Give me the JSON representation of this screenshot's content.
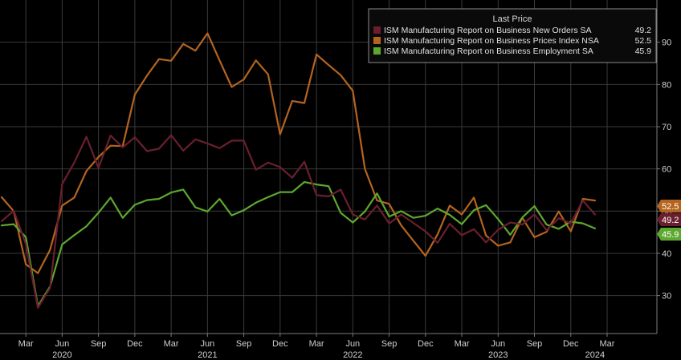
{
  "chart_data": {
    "type": "line",
    "title": "",
    "xlabel": "",
    "ylabel": "",
    "ylim": [
      21,
      100
    ],
    "x_start": "Jan 2020",
    "x_end": "Apr 2024",
    "yticks": [
      30,
      40,
      50,
      60,
      70,
      80,
      90
    ],
    "month_ticks": [
      {
        "label": "Mar",
        "date": "2020-03"
      },
      {
        "label": "Jun",
        "date": "2020-06"
      },
      {
        "label": "Sep",
        "date": "2020-09"
      },
      {
        "label": "Dec",
        "date": "2020-12"
      },
      {
        "label": "Mar",
        "date": "2021-03"
      },
      {
        "label": "Jun",
        "date": "2021-06"
      },
      {
        "label": "Sep",
        "date": "2021-09"
      },
      {
        "label": "Dec",
        "date": "2021-12"
      },
      {
        "label": "Mar",
        "date": "2022-03"
      },
      {
        "label": "Jun",
        "date": "2022-06"
      },
      {
        "label": "Sep",
        "date": "2022-09"
      },
      {
        "label": "Dec",
        "date": "2022-12"
      },
      {
        "label": "Mar",
        "date": "2023-03"
      },
      {
        "label": "Jun",
        "date": "2023-06"
      },
      {
        "label": "Sep",
        "date": "2023-09"
      },
      {
        "label": "Dec",
        "date": "2023-12"
      },
      {
        "label": "Mar",
        "date": "2024-03"
      }
    ],
    "year_labels": [
      {
        "label": "2020",
        "date": "2020-06"
      },
      {
        "label": "2021",
        "date": "2021-06"
      },
      {
        "label": "2022",
        "date": "2022-06"
      },
      {
        "label": "2023",
        "date": "2023-06"
      },
      {
        "label": "2024",
        "date": "2024-02"
      }
    ],
    "x": [
      "2020-01",
      "2020-02",
      "2020-03",
      "2020-04",
      "2020-05",
      "2020-06",
      "2020-07",
      "2020-08",
      "2020-09",
      "2020-10",
      "2020-11",
      "2020-12",
      "2021-01",
      "2021-02",
      "2021-03",
      "2021-04",
      "2021-05",
      "2021-06",
      "2021-07",
      "2021-08",
      "2021-09",
      "2021-10",
      "2021-11",
      "2021-12",
      "2022-01",
      "2022-02",
      "2022-03",
      "2022-04",
      "2022-05",
      "2022-06",
      "2022-07",
      "2022-08",
      "2022-09",
      "2022-10",
      "2022-11",
      "2022-12",
      "2023-01",
      "2023-02",
      "2023-03",
      "2023-04",
      "2023-05",
      "2023-06",
      "2023-07",
      "2023-08",
      "2023-09",
      "2023-10",
      "2023-11",
      "2023-12",
      "2024-01",
      "2024-02"
    ],
    "legend": {
      "title": "Last Price",
      "placement": "top-right"
    },
    "series": [
      {
        "name": "ISM Manufacturing Report on Business New Orders SA",
        "color": "#6b1f2e",
        "last": "49.2",
        "values": [
          47.6,
          50.1,
          42.2,
          27.1,
          31.8,
          56.4,
          61.5,
          67.6,
          60.2,
          67.9,
          65.1,
          67.5,
          64.2,
          64.8,
          68.0,
          64.3,
          67.0,
          66.0,
          64.9,
          66.7,
          66.7,
          59.8,
          61.5,
          60.4,
          57.9,
          61.7,
          53.8,
          53.5,
          55.1,
          49.2,
          48.0,
          51.3,
          47.1,
          49.2,
          47.2,
          45.2,
          42.5,
          47.0,
          44.3,
          45.7,
          42.6,
          45.6,
          47.3,
          46.8,
          49.2,
          45.5,
          48.3,
          47.1,
          52.5,
          49.2
        ]
      },
      {
        "name": "ISM Manufacturing Report on Business Prices Index NSA",
        "color": "#b5641f",
        "last": "52.5",
        "values": [
          53.3,
          50.0,
          37.4,
          35.3,
          40.8,
          51.3,
          53.2,
          59.5,
          62.8,
          65.5,
          65.4,
          77.6,
          82.1,
          86.0,
          85.6,
          89.6,
          88.0,
          92.1,
          85.7,
          79.4,
          81.2,
          85.7,
          82.4,
          68.2,
          76.1,
          75.6,
          87.1,
          84.6,
          82.2,
          78.5,
          60.0,
          52.5,
          51.7,
          46.6,
          43.0,
          39.4,
          44.5,
          51.3,
          49.2,
          53.2,
          44.2,
          41.8,
          42.6,
          48.4,
          43.8,
          45.1,
          49.9,
          45.2,
          52.9,
          52.5
        ]
      },
      {
        "name": "ISM Manufacturing Report on Business Employment SA",
        "color": "#5da82e",
        "last": "45.9",
        "values": [
          46.6,
          46.9,
          43.8,
          27.5,
          32.1,
          42.1,
          44.3,
          46.4,
          49.6,
          53.2,
          48.4,
          51.5,
          52.6,
          52.9,
          54.4,
          55.1,
          50.9,
          49.9,
          52.9,
          49.0,
          50.2,
          52.0,
          53.3,
          54.5,
          54.5,
          56.9,
          56.3,
          55.9,
          49.6,
          47.3,
          49.9,
          54.2,
          48.7,
          50.0,
          48.4,
          48.9,
          50.6,
          49.1,
          46.9,
          50.2,
          51.4,
          48.1,
          44.4,
          48.5,
          51.2,
          46.8,
          45.8,
          47.5,
          47.1,
          45.9
        ]
      }
    ]
  }
}
